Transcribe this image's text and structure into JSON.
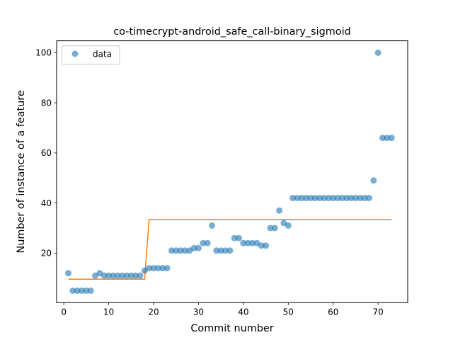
{
  "chart_data": {
    "type": "scatter",
    "title": "co-timecrypt-android_safe_call-binary_sigmoid",
    "xlabel": "Commit number",
    "ylabel": "Number of instance of a feature",
    "xlim": [
      -1.6,
      76.6
    ],
    "ylim": [
      0.25,
      104.75
    ],
    "xticks": [
      0,
      10,
      20,
      30,
      40,
      50,
      60,
      70
    ],
    "yticks": [
      20,
      40,
      60,
      80,
      100
    ],
    "legend": {
      "placement": "top-left",
      "entries": [
        "data"
      ]
    },
    "colors": {
      "data": "#1f77b4",
      "fit": "#ff7f0e"
    },
    "grid": false,
    "series": [
      {
        "name": "data",
        "kind": "scatter",
        "points": [
          [
            1,
            12
          ],
          [
            2,
            5
          ],
          [
            3,
            5
          ],
          [
            4,
            5
          ],
          [
            5,
            5
          ],
          [
            6,
            5
          ],
          [
            7,
            11
          ],
          [
            8,
            12
          ],
          [
            9,
            11
          ],
          [
            10,
            11
          ],
          [
            11,
            11
          ],
          [
            12,
            11
          ],
          [
            13,
            11
          ],
          [
            14,
            11
          ],
          [
            15,
            11
          ],
          [
            16,
            11
          ],
          [
            17,
            11
          ],
          [
            18,
            13
          ],
          [
            19,
            14
          ],
          [
            20,
            14
          ],
          [
            21,
            14
          ],
          [
            22,
            14
          ],
          [
            23,
            14
          ],
          [
            24,
            21
          ],
          [
            25,
            21
          ],
          [
            26,
            21
          ],
          [
            27,
            21
          ],
          [
            28,
            21
          ],
          [
            29,
            22
          ],
          [
            30,
            22
          ],
          [
            31,
            24
          ],
          [
            32,
            24
          ],
          [
            33,
            31
          ],
          [
            34,
            21
          ],
          [
            35,
            21
          ],
          [
            36,
            21
          ],
          [
            37,
            21
          ],
          [
            38,
            26
          ],
          [
            39,
            26
          ],
          [
            40,
            24
          ],
          [
            41,
            24
          ],
          [
            42,
            24
          ],
          [
            43,
            24
          ],
          [
            44,
            23
          ],
          [
            45,
            23
          ],
          [
            46,
            30
          ],
          [
            47,
            30
          ],
          [
            48,
            37
          ],
          [
            49,
            32
          ],
          [
            50,
            31
          ],
          [
            51,
            42
          ],
          [
            52,
            42
          ],
          [
            53,
            42
          ],
          [
            54,
            42
          ],
          [
            55,
            42
          ],
          [
            56,
            42
          ],
          [
            57,
            42
          ],
          [
            58,
            42
          ],
          [
            59,
            42
          ],
          [
            60,
            42
          ],
          [
            61,
            42
          ],
          [
            62,
            42
          ],
          [
            63,
            42
          ],
          [
            64,
            42
          ],
          [
            65,
            42
          ],
          [
            66,
            42
          ],
          [
            67,
            42
          ],
          [
            68,
            42
          ],
          [
            69,
            49
          ],
          [
            70,
            100
          ],
          [
            71,
            66
          ],
          [
            72,
            66
          ],
          [
            73,
            66
          ]
        ]
      },
      {
        "kind": "line",
        "points": [
          [
            1,
            9.6
          ],
          [
            18,
            9.6
          ],
          [
            19,
            33.4
          ],
          [
            73,
            33.4
          ]
        ]
      }
    ]
  }
}
